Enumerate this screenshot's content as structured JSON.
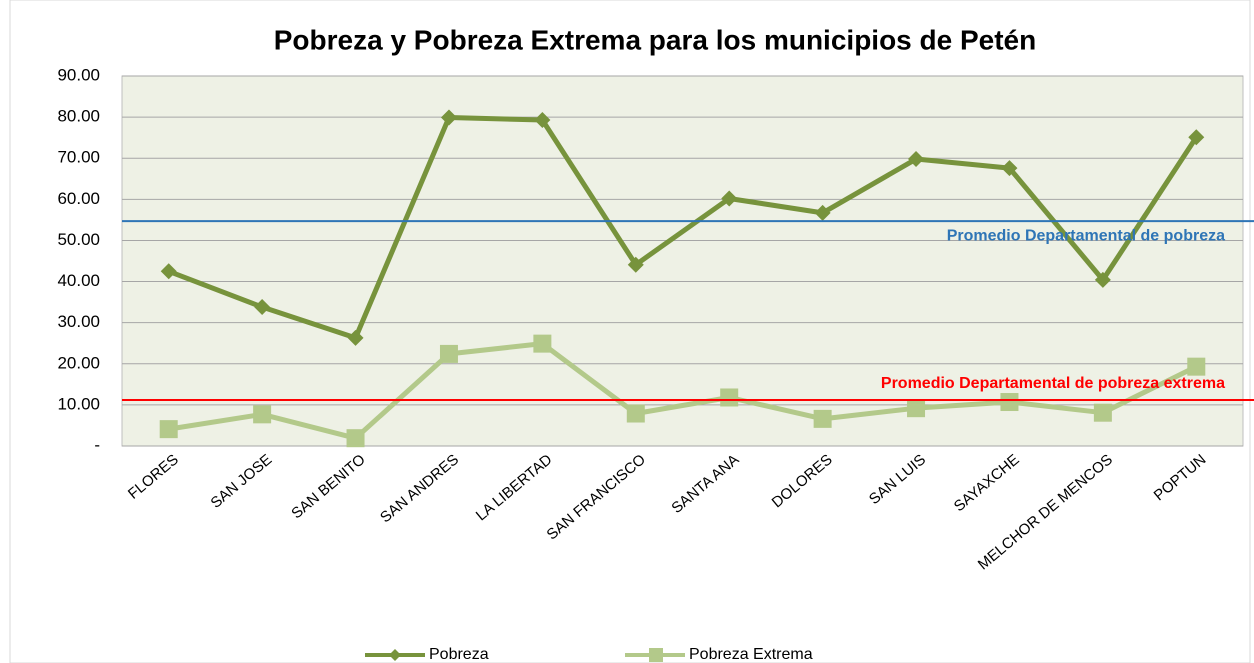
{
  "chart_data": {
    "type": "line",
    "title": "Pobreza y Pobreza Extrema para los municipios de Petén",
    "categories": [
      "FLORES",
      "SAN JOSE",
      "SAN BENITO",
      "SAN ANDRES",
      "LA LIBERTAD",
      "SAN FRANCISCO",
      "SANTA ANA",
      "DOLORES",
      "SAN LUIS",
      "SAYAXCHE",
      "MELCHOR DE MENCOS",
      "POPTUN"
    ],
    "series": [
      {
        "name": "Pobreza",
        "color": "#77933c",
        "marker": "diamond",
        "values": [
          42.5,
          33.8,
          26.3,
          79.9,
          79.3,
          44.1,
          60.2,
          56.7,
          69.8,
          67.6,
          40.4,
          75.1
        ]
      },
      {
        "name": "Pobreza Extrema",
        "color": "#b3c98a",
        "marker": "square",
        "values": [
          4.1,
          7.7,
          1.9,
          22.4,
          24.9,
          7.9,
          11.8,
          6.6,
          9.2,
          10.7,
          8.1,
          19.3
        ]
      }
    ],
    "reference_lines": [
      {
        "label": "Promedio Departamental de pobreza",
        "value": 54.7,
        "color": "#2e75b6"
      },
      {
        "label": "Promedio Departamental de pobreza extrema",
        "value": 11.2,
        "color": "#ff0000"
      }
    ],
    "ylim": [
      0,
      90
    ],
    "yticks": [
      {
        "value": 0,
        "label": "-"
      },
      {
        "value": 10,
        "label": "10.00"
      },
      {
        "value": 20,
        "label": "20.00"
      },
      {
        "value": 30,
        "label": "30.00"
      },
      {
        "value": 40,
        "label": "40.00"
      },
      {
        "value": 50,
        "label": "50.00"
      },
      {
        "value": 60,
        "label": "60.00"
      },
      {
        "value": 70,
        "label": "70.00"
      },
      {
        "value": 80,
        "label": "80.00"
      },
      {
        "value": 90,
        "label": "90.00"
      }
    ],
    "grid": true,
    "legend": "bottom"
  }
}
